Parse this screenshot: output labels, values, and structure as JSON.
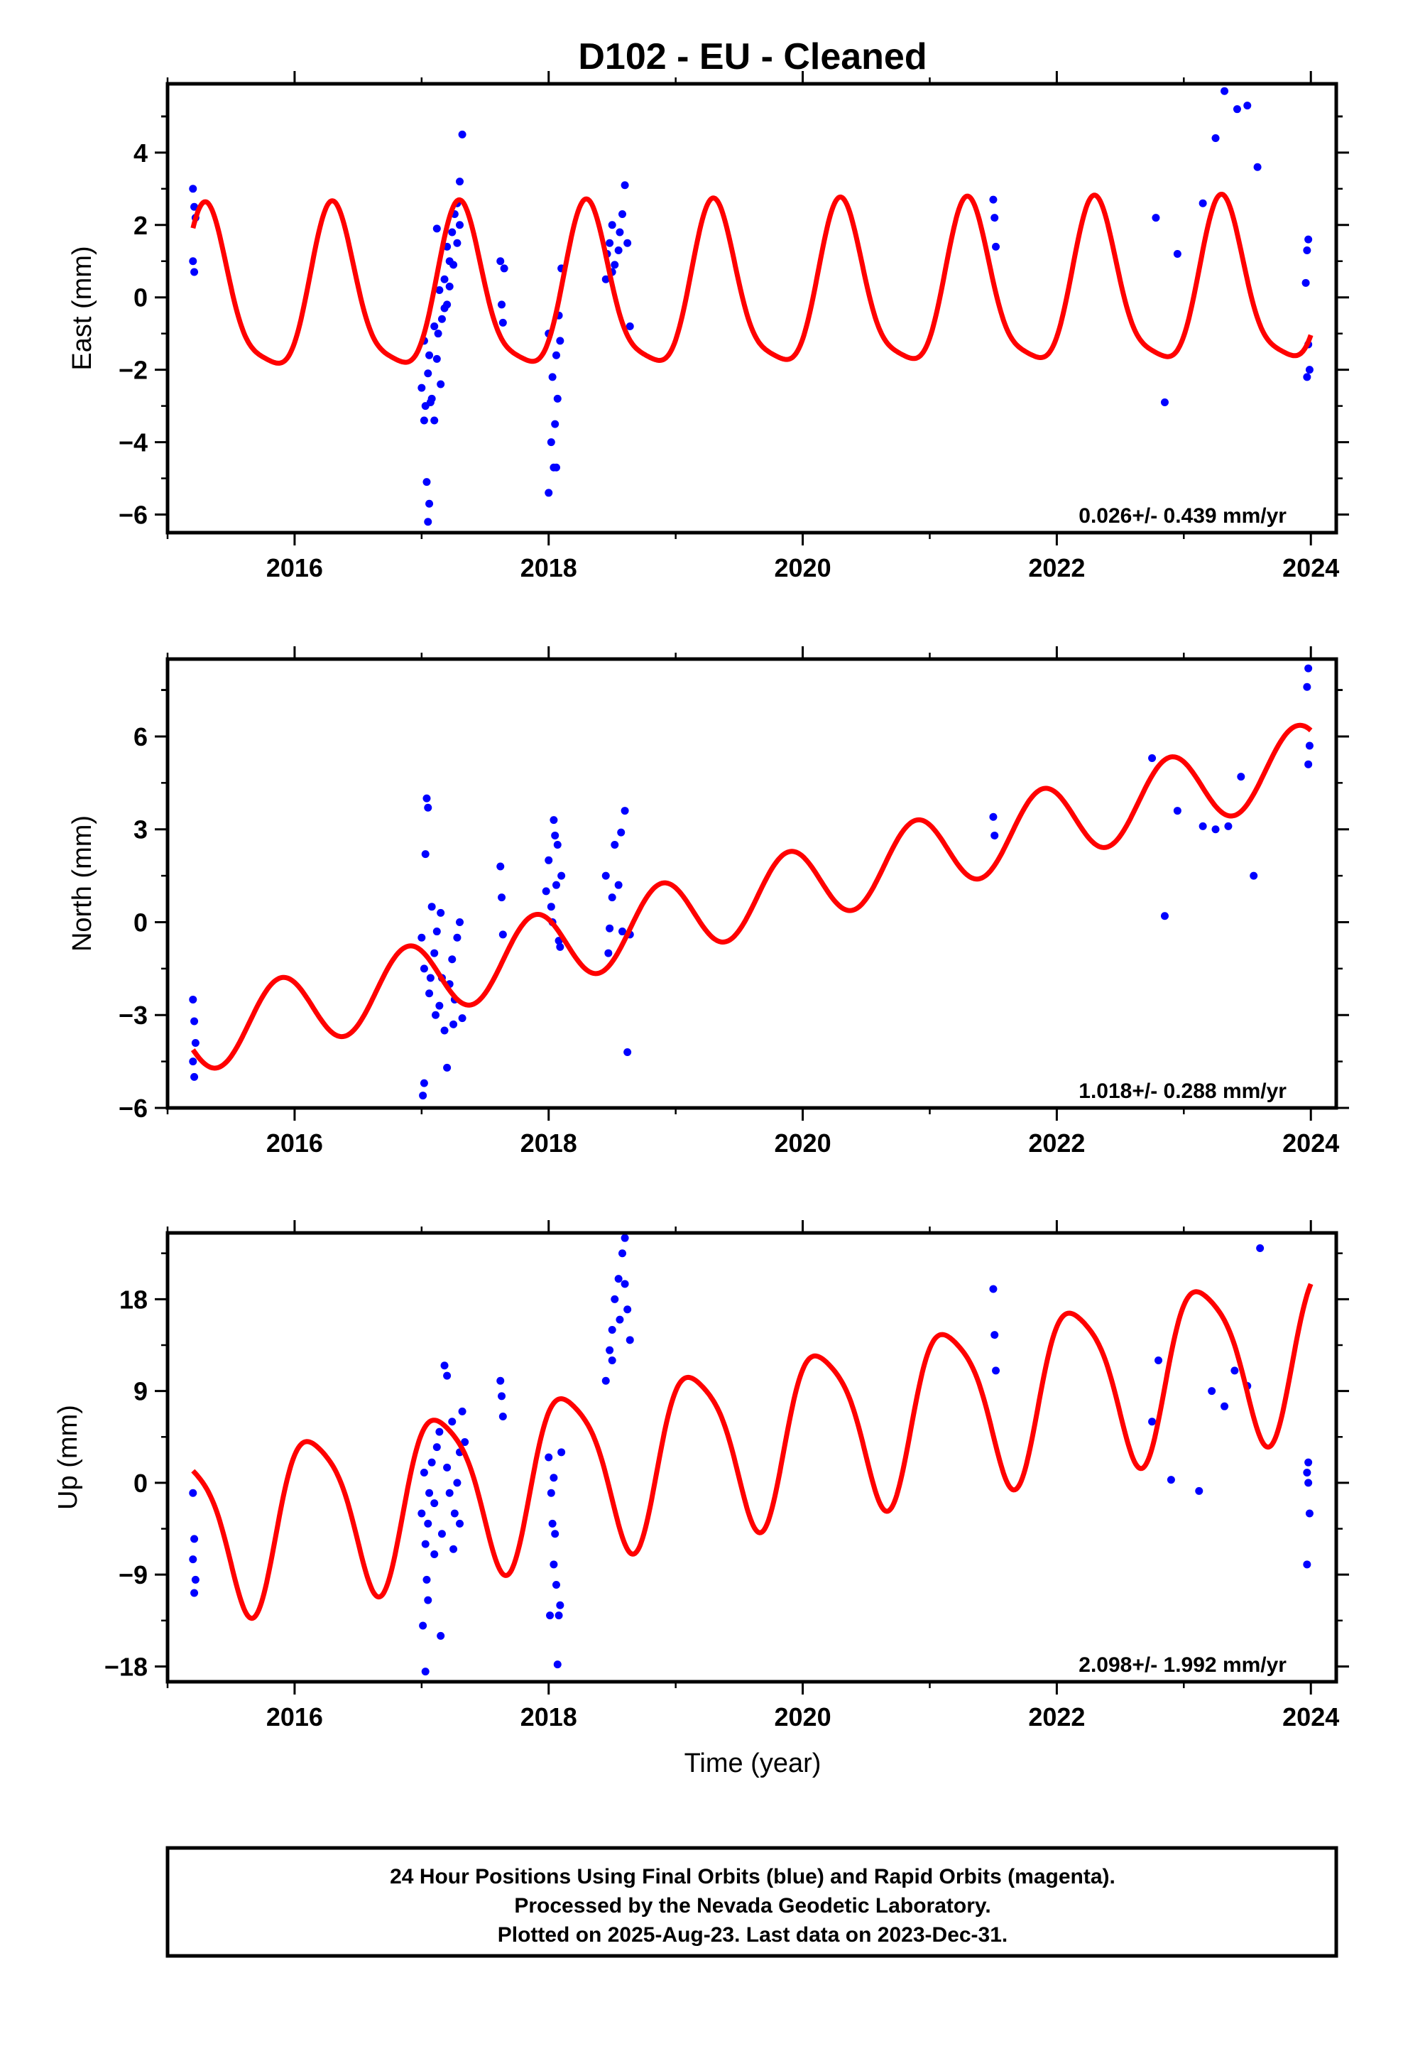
{
  "figure": {
    "title": "D102  - EU - Cleaned",
    "xlabel": "Time (year)",
    "footnote": [
      "24 Hour Positions Using Final Orbits (blue) and Rapid Orbits (magenta).",
      "Processed by the Nevada Geodetic Laboratory.",
      "Plotted on 2025-Aug-23. Last data on 2023-Dec-31."
    ],
    "colors": {
      "data": "#0000ff",
      "model": "#ff0000",
      "frame": "#000000"
    }
  },
  "chart_data": [
    {
      "type": "scatter",
      "ylabel": "East (mm)",
      "rate_text": "0.026+/- 0.439 mm/yr",
      "xlim": [
        2015.0,
        2024.2
      ],
      "ylim": [
        -6.5,
        5.9
      ],
      "xticks": [
        2016,
        2018,
        2020,
        2022,
        2024
      ],
      "yticks": [
        -6,
        -4,
        -2,
        0,
        2,
        4
      ],
      "ytick_labels": [
        "−6",
        "−4",
        "−2",
        "0",
        "2",
        "4"
      ],
      "model": {
        "trend": 0.026,
        "intercept": -0.05,
        "ref_year": 2015.2,
        "amp": 2.2,
        "phase": 0.9,
        "amp2": 0.5,
        "phase2": 0.5
      },
      "points": [
        [
          2015.2,
          3.0
        ],
        [
          2015.21,
          2.5
        ],
        [
          2015.22,
          2.2
        ],
        [
          2015.2,
          1.0
        ],
        [
          2015.21,
          0.7
        ],
        [
          2017.0,
          -2.5
        ],
        [
          2017.02,
          -1.2
        ],
        [
          2017.03,
          -3.0
        ],
        [
          2017.05,
          -2.1
        ],
        [
          2017.06,
          -1.6
        ],
        [
          2017.08,
          -2.8
        ],
        [
          2017.1,
          -0.8
        ],
        [
          2017.12,
          -1.7
        ],
        [
          2017.14,
          0.2
        ],
        [
          2017.16,
          -0.6
        ],
        [
          2017.18,
          0.5
        ],
        [
          2017.2,
          1.4
        ],
        [
          2017.22,
          1.0
        ],
        [
          2017.24,
          1.8
        ],
        [
          2017.26,
          2.3
        ],
        [
          2017.28,
          2.6
        ],
        [
          2017.3,
          3.2
        ],
        [
          2017.32,
          4.5
        ],
        [
          2017.04,
          -5.1
        ],
        [
          2017.06,
          -5.7
        ],
        [
          2017.05,
          -6.2
        ],
        [
          2017.1,
          -3.4
        ],
        [
          2017.15,
          -2.4
        ],
        [
          2017.2,
          -0.2
        ],
        [
          2017.25,
          0.9
        ],
        [
          2017.12,
          1.9
        ],
        [
          2017.3,
          2.0
        ],
        [
          2017.07,
          -2.9
        ],
        [
          2017.13,
          -1.0
        ],
        [
          2017.18,
          -0.3
        ],
        [
          2017.22,
          0.3
        ],
        [
          2017.02,
          -3.4
        ],
        [
          2017.28,
          1.5
        ],
        [
          2017.62,
          1.0
        ],
        [
          2017.63,
          -0.2
        ],
        [
          2017.64,
          -0.7
        ],
        [
          2017.65,
          0.8
        ],
        [
          2018.0,
          -1.0
        ],
        [
          2018.02,
          -4.0
        ],
        [
          2018.03,
          -2.2
        ],
        [
          2018.05,
          -3.5
        ],
        [
          2018.06,
          -1.6
        ],
        [
          2018.08,
          -0.5
        ],
        [
          2018.1,
          0.8
        ],
        [
          2018.04,
          -4.7
        ],
        [
          2018.0,
          -5.4
        ],
        [
          2018.07,
          -2.8
        ],
        [
          2018.09,
          -1.2
        ],
        [
          2018.06,
          -4.7
        ],
        [
          2018.45,
          0.5
        ],
        [
          2018.48,
          1.5
        ],
        [
          2018.5,
          2.0
        ],
        [
          2018.52,
          0.9
        ],
        [
          2018.55,
          1.3
        ],
        [
          2018.58,
          2.3
        ],
        [
          2018.6,
          3.1
        ],
        [
          2018.62,
          1.5
        ],
        [
          2018.64,
          -0.8
        ],
        [
          2018.46,
          1.2
        ],
        [
          2018.5,
          0.7
        ],
        [
          2018.56,
          1.8
        ],
        [
          2021.5,
          2.7
        ],
        [
          2021.51,
          2.2
        ],
        [
          2021.52,
          1.4
        ],
        [
          2022.78,
          2.2
        ],
        [
          2022.85,
          -2.9
        ],
        [
          2022.95,
          1.2
        ],
        [
          2023.15,
          2.6
        ],
        [
          2023.25,
          4.4
        ],
        [
          2023.32,
          5.7
        ],
        [
          2023.42,
          5.2
        ],
        [
          2023.5,
          5.3
        ],
        [
          2023.58,
          3.6
        ],
        [
          2023.98,
          1.6
        ],
        [
          2023.97,
          1.3
        ],
        [
          2023.96,
          0.4
        ],
        [
          2023.98,
          -1.3
        ],
        [
          2023.99,
          -2.0
        ],
        [
          2023.97,
          -2.2
        ]
      ]
    },
    {
      "type": "scatter",
      "ylabel": "North (mm)",
      "rate_text": "1.018+/- 0.288 mm/yr",
      "xlim": [
        2015.0,
        2024.2
      ],
      "ylim": [
        -6.0,
        8.5
      ],
      "xticks": [
        2016,
        2018,
        2020,
        2022,
        2024
      ],
      "yticks": [
        -6,
        -3,
        0,
        3,
        6
      ],
      "ytick_labels": [
        "−6",
        "−3",
        "0",
        "3",
        "6"
      ],
      "model": {
        "trend": 1.018,
        "intercept": -3.7,
        "ref_year": 2015.2,
        "amp": 1.2,
        "phase": 3.5,
        "amp2": 0.0,
        "phase2": 0.0
      },
      "points": [
        [
          2015.2,
          -2.5
        ],
        [
          2015.21,
          -3.2
        ],
        [
          2015.22,
          -3.9
        ],
        [
          2015.2,
          -4.5
        ],
        [
          2015.21,
          -5.0
        ],
        [
          2017.0,
          -0.5
        ],
        [
          2017.02,
          -1.5
        ],
        [
          2017.03,
          2.2
        ],
        [
          2017.04,
          4.0
        ],
        [
          2017.05,
          3.7
        ],
        [
          2017.06,
          -2.3
        ],
        [
          2017.08,
          0.5
        ],
        [
          2017.1,
          -1.0
        ],
        [
          2017.12,
          -0.3
        ],
        [
          2017.14,
          -2.7
        ],
        [
          2017.16,
          -1.8
        ],
        [
          2017.18,
          -3.5
        ],
        [
          2017.2,
          -4.7
        ],
        [
          2017.22,
          -2.0
        ],
        [
          2017.24,
          -1.2
        ],
        [
          2017.26,
          -2.5
        ],
        [
          2017.28,
          -0.5
        ],
        [
          2017.3,
          0.0
        ],
        [
          2017.02,
          -5.2
        ],
        [
          2017.01,
          -5.6
        ],
        [
          2017.32,
          -3.1
        ],
        [
          2017.25,
          -3.3
        ],
        [
          2017.15,
          0.3
        ],
        [
          2017.07,
          -1.8
        ],
        [
          2017.11,
          -3.0
        ],
        [
          2017.62,
          1.8
        ],
        [
          2017.63,
          0.8
        ],
        [
          2017.64,
          -0.4
        ],
        [
          2017.98,
          1.0
        ],
        [
          2018.0,
          2.0
        ],
        [
          2018.02,
          0.5
        ],
        [
          2018.04,
          3.3
        ],
        [
          2018.05,
          2.8
        ],
        [
          2018.06,
          1.2
        ],
        [
          2018.08,
          -0.6
        ],
        [
          2018.1,
          1.5
        ],
        [
          2018.03,
          0.0
        ],
        [
          2018.07,
          2.5
        ],
        [
          2018.09,
          -0.8
        ],
        [
          2018.45,
          1.5
        ],
        [
          2018.48,
          -0.2
        ],
        [
          2018.5,
          0.8
        ],
        [
          2018.52,
          2.5
        ],
        [
          2018.55,
          1.2
        ],
        [
          2018.58,
          -0.3
        ],
        [
          2018.6,
          3.6
        ],
        [
          2018.62,
          -4.2
        ],
        [
          2018.64,
          -0.4
        ],
        [
          2018.47,
          -1.0
        ],
        [
          2018.57,
          2.9
        ],
        [
          2021.5,
          3.4
        ],
        [
          2021.51,
          2.8
        ],
        [
          2022.75,
          5.3
        ],
        [
          2022.85,
          0.2
        ],
        [
          2022.95,
          3.6
        ],
        [
          2023.15,
          3.1
        ],
        [
          2023.25,
          3.0
        ],
        [
          2023.35,
          3.1
        ],
        [
          2023.45,
          4.7
        ],
        [
          2023.55,
          1.5
        ],
        [
          2023.98,
          8.2
        ],
        [
          2023.97,
          7.6
        ],
        [
          2023.99,
          5.7
        ],
        [
          2023.98,
          5.1
        ]
      ]
    },
    {
      "type": "scatter",
      "ylabel": "Up (mm)",
      "rate_text": "2.098+/- 1.992 mm/yr",
      "xlim": [
        2015.0,
        2024.2
      ],
      "ylim": [
        -19.5,
        24.5
      ],
      "xticks": [
        2016,
        2018,
        2020,
        2022,
        2024
      ],
      "yticks": [
        -18,
        -9,
        0,
        9,
        18
      ],
      "ytick_labels": [
        "−18",
        "−9",
        "0",
        "9",
        "18"
      ],
      "model": {
        "trend": 2.098,
        "intercept": -4.9,
        "ref_year": 2015.2,
        "amp": 8.0,
        "phase": 1.9,
        "amp2": 1.5,
        "phase2": 4.8
      },
      "points": [
        [
          2015.2,
          -1.0
        ],
        [
          2015.21,
          -5.5
        ],
        [
          2015.2,
          -7.5
        ],
        [
          2015.22,
          -9.5
        ],
        [
          2015.21,
          -10.8
        ],
        [
          2017.0,
          -3.0
        ],
        [
          2017.02,
          1.0
        ],
        [
          2017.03,
          -6.0
        ],
        [
          2017.04,
          -9.5
        ],
        [
          2017.05,
          -4.0
        ],
        [
          2017.06,
          -1.0
        ],
        [
          2017.08,
          2.0
        ],
        [
          2017.1,
          -2.0
        ],
        [
          2017.12,
          3.5
        ],
        [
          2017.14,
          5.0
        ],
        [
          2017.16,
          -5.0
        ],
        [
          2017.18,
          11.5
        ],
        [
          2017.2,
          10.5
        ],
        [
          2017.22,
          -1.0
        ],
        [
          2017.24,
          6.0
        ],
        [
          2017.26,
          -3.0
        ],
        [
          2017.28,
          0.0
        ],
        [
          2017.3,
          3.0
        ],
        [
          2017.32,
          7.0
        ],
        [
          2017.34,
          4.0
        ],
        [
          2017.01,
          -14.0
        ],
        [
          2017.03,
          -18.5
        ],
        [
          2017.15,
          -15.0
        ],
        [
          2017.1,
          -7.0
        ],
        [
          2017.25,
          -6.5
        ],
        [
          2017.2,
          1.5
        ],
        [
          2017.3,
          -4.0
        ],
        [
          2017.05,
          -11.5
        ],
        [
          2017.62,
          10.0
        ],
        [
          2017.63,
          8.5
        ],
        [
          2017.64,
          6.5
        ],
        [
          2018.0,
          2.5
        ],
        [
          2018.02,
          -1.0
        ],
        [
          2018.03,
          -4.0
        ],
        [
          2018.04,
          -8.0
        ],
        [
          2018.05,
          -5.0
        ],
        [
          2018.06,
          -10.0
        ],
        [
          2018.08,
          -13.0
        ],
        [
          2018.1,
          3.0
        ],
        [
          2018.01,
          -13.0
        ],
        [
          2018.07,
          -17.8
        ],
        [
          2018.09,
          -12.0
        ],
        [
          2018.04,
          0.5
        ],
        [
          2018.45,
          10.0
        ],
        [
          2018.48,
          13.0
        ],
        [
          2018.5,
          15.0
        ],
        [
          2018.52,
          18.0
        ],
        [
          2018.55,
          20.0
        ],
        [
          2018.58,
          22.5
        ],
        [
          2018.6,
          24.0
        ],
        [
          2018.62,
          17.0
        ],
        [
          2018.64,
          14.0
        ],
        [
          2018.5,
          12.0
        ],
        [
          2018.56,
          16.0
        ],
        [
          2018.6,
          19.5
        ],
        [
          2021.5,
          19.0
        ],
        [
          2021.51,
          14.5
        ],
        [
          2021.52,
          11.0
        ],
        [
          2022.75,
          6.0
        ],
        [
          2022.8,
          12.0
        ],
        [
          2022.9,
          0.3
        ],
        [
          2023.12,
          -0.8
        ],
        [
          2023.22,
          9.0
        ],
        [
          2023.32,
          7.5
        ],
        [
          2023.4,
          11.0
        ],
        [
          2023.5,
          9.5
        ],
        [
          2023.6,
          23.0
        ],
        [
          2023.98,
          2.0
        ],
        [
          2023.97,
          1.0
        ],
        [
          2023.98,
          0.0
        ],
        [
          2023.99,
          -3.0
        ],
        [
          2023.97,
          -8.0
        ]
      ]
    }
  ]
}
